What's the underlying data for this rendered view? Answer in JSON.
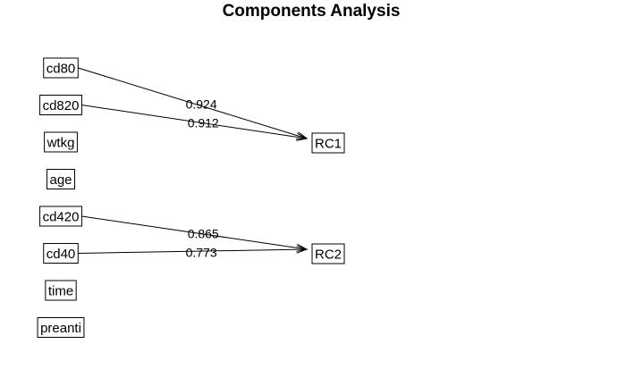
{
  "title": "Components Analysis",
  "variables": [
    {
      "id": "cd80",
      "label": "cd80"
    },
    {
      "id": "cd820",
      "label": "cd820"
    },
    {
      "id": "wtkg",
      "label": "wtkg"
    },
    {
      "id": "age",
      "label": "age"
    },
    {
      "id": "cd420",
      "label": "cd420"
    },
    {
      "id": "cd40",
      "label": "cd40"
    },
    {
      "id": "time",
      "label": "time"
    },
    {
      "id": "preanti",
      "label": "preanti"
    }
  ],
  "components": [
    {
      "id": "RC1",
      "label": "RC1"
    },
    {
      "id": "RC2",
      "label": "RC2"
    }
  ],
  "loadings": [
    {
      "from": "cd80",
      "to": "RC1",
      "value": "0.924"
    },
    {
      "from": "cd820",
      "to": "RC1",
      "value": "0.912"
    },
    {
      "from": "cd420",
      "to": "RC2",
      "value": "0.865"
    },
    {
      "from": "cd40",
      "to": "RC2",
      "value": "0.773"
    }
  ]
}
